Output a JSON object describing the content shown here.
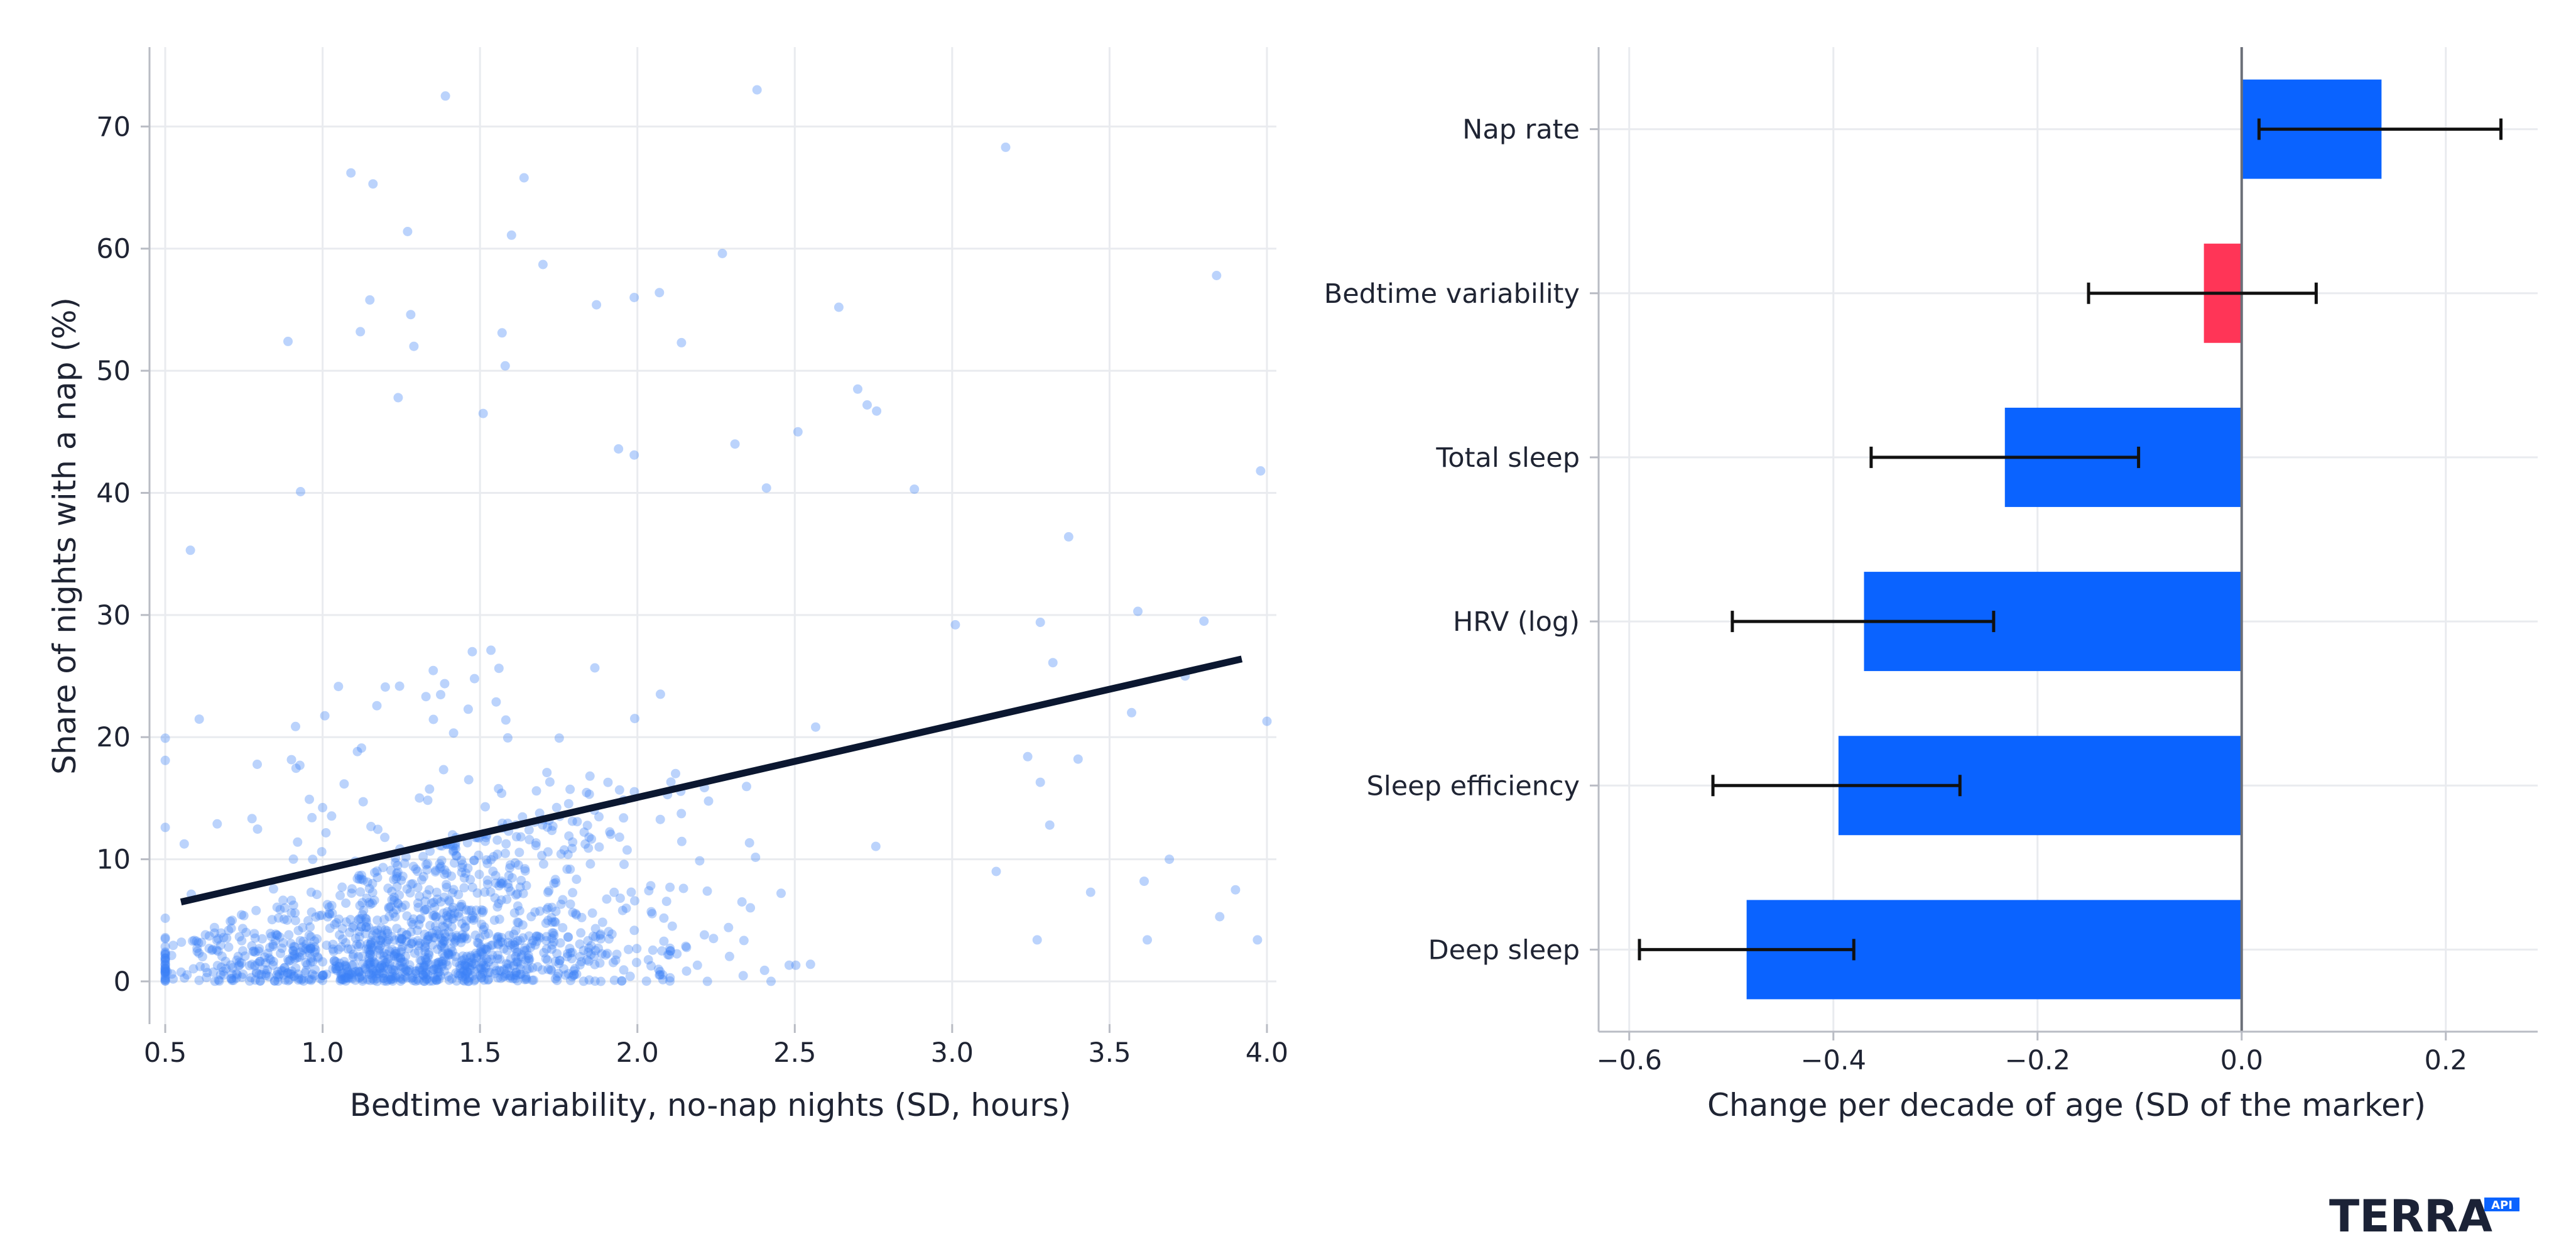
{
  "logo": {
    "text": "TERRA",
    "badge": "API"
  },
  "colors": {
    "point": "#3b82f6",
    "fit": "#0b1730",
    "bar_positive": "#0a63ff",
    "bar_highlight": "#ff3557",
    "error": "#111111",
    "zero_line": "#6b6f78"
  },
  "chart_data": [
    {
      "type": "scatter",
      "xlabel": "Bedtime variability, no-nap nights (SD, hours)",
      "ylabel": "Share of nights with a nap (%)",
      "xlim": [
        0.45,
        4.03
      ],
      "ylim": [
        -3.5,
        76.5
      ],
      "xticks": [
        "0.5",
        "1.0",
        "1.5",
        "2.0",
        "2.5",
        "3.0",
        "3.5",
        "4.0"
      ],
      "yticks": [
        "0",
        "10",
        "20",
        "30",
        "40",
        "50",
        "60",
        "70"
      ],
      "grid": true,
      "fit_line": {
        "x": [
          0.55,
          3.92
        ],
        "y": [
          6.5,
          26.4
        ]
      },
      "notable_points": [
        {
          "x": 1.39,
          "y": 72.5
        },
        {
          "x": 2.38,
          "y": 73.0
        },
        {
          "x": 3.17,
          "y": 68.3
        },
        {
          "x": 1.09,
          "y": 66.2
        },
        {
          "x": 1.16,
          "y": 65.3
        },
        {
          "x": 1.64,
          "y": 65.8
        },
        {
          "x": 1.27,
          "y": 61.4
        },
        {
          "x": 1.6,
          "y": 61.1
        },
        {
          "x": 2.27,
          "y": 59.6
        },
        {
          "x": 1.7,
          "y": 58.7
        },
        {
          "x": 3.84,
          "y": 57.8
        },
        {
          "x": 1.99,
          "y": 56.0
        },
        {
          "x": 2.07,
          "y": 56.4
        },
        {
          "x": 1.87,
          "y": 55.4
        },
        {
          "x": 2.64,
          "y": 55.2
        },
        {
          "x": 1.15,
          "y": 55.8
        },
        {
          "x": 1.28,
          "y": 54.6
        },
        {
          "x": 1.12,
          "y": 53.2
        },
        {
          "x": 1.57,
          "y": 53.1
        },
        {
          "x": 0.89,
          "y": 52.4
        },
        {
          "x": 1.29,
          "y": 52.0
        },
        {
          "x": 2.14,
          "y": 52.3
        },
        {
          "x": 1.58,
          "y": 50.4
        },
        {
          "x": 1.24,
          "y": 47.8
        },
        {
          "x": 2.7,
          "y": 48.5
        },
        {
          "x": 2.73,
          "y": 47.2
        },
        {
          "x": 2.76,
          "y": 46.7
        },
        {
          "x": 1.51,
          "y": 46.5
        },
        {
          "x": 1.94,
          "y": 43.6
        },
        {
          "x": 2.31,
          "y": 44.0
        },
        {
          "x": 2.51,
          "y": 45.0
        },
        {
          "x": 1.99,
          "y": 43.1
        },
        {
          "x": 3.98,
          "y": 41.8
        },
        {
          "x": 2.41,
          "y": 40.4
        },
        {
          "x": 0.93,
          "y": 40.1
        },
        {
          "x": 2.88,
          "y": 40.3
        },
        {
          "x": 3.37,
          "y": 36.4
        },
        {
          "x": 0.58,
          "y": 35.3
        },
        {
          "x": 3.59,
          "y": 30.3
        },
        {
          "x": 3.01,
          "y": 29.2
        },
        {
          "x": 3.28,
          "y": 29.4
        },
        {
          "x": 3.8,
          "y": 29.5
        },
        {
          "x": 3.32,
          "y": 26.1
        },
        {
          "x": 3.74,
          "y": 25.0
        },
        {
          "x": 3.57,
          "y": 22.0
        },
        {
          "x": 4.0,
          "y": 21.3
        },
        {
          "x": 3.4,
          "y": 18.2
        },
        {
          "x": 3.24,
          "y": 18.4
        },
        {
          "x": 3.28,
          "y": 16.3
        },
        {
          "x": 3.31,
          "y": 12.8
        },
        {
          "x": 3.14,
          "y": 9.0
        },
        {
          "x": 3.69,
          "y": 10.0
        },
        {
          "x": 3.44,
          "y": 7.3
        },
        {
          "x": 3.61,
          "y": 8.2
        },
        {
          "x": 3.9,
          "y": 7.5
        },
        {
          "x": 3.85,
          "y": 5.3
        },
        {
          "x": 3.62,
          "y": 3.4
        },
        {
          "x": 3.97,
          "y": 3.4
        },
        {
          "x": 3.27,
          "y": 3.4
        },
        {
          "x": 2.55,
          "y": 1.4
        }
      ],
      "bulk_points": {
        "count": 1400,
        "x_range": [
          0.5,
          2.9
        ],
        "y_range": [
          0,
          45
        ],
        "dense_center": {
          "x": 1.2,
          "y": 5
        }
      }
    },
    {
      "type": "bar",
      "orientation": "horizontal",
      "xlabel": "Change per decade of age (SD of the marker)",
      "xlim": [
        -0.63,
        0.29
      ],
      "xticks": [
        {
          "value": -0.6,
          "label": "−0.6"
        },
        {
          "value": -0.4,
          "label": "−0.4"
        },
        {
          "value": -0.2,
          "label": "−0.2"
        },
        {
          "value": 0.0,
          "label": "0.0"
        },
        {
          "value": 0.2,
          "label": "0.2"
        }
      ],
      "grid": true,
      "categories": [
        "Nap rate",
        "Bedtime variability",
        "Total sleep",
        "HRV (log)",
        "Sleep efficiency",
        "Deep sleep"
      ],
      "values": [
        0.137,
        -0.037,
        -0.232,
        -0.37,
        -0.395,
        -0.485
      ],
      "ci_low": [
        0.017,
        -0.15,
        -0.363,
        -0.499,
        -0.518,
        -0.59
      ],
      "ci_high": [
        0.254,
        0.073,
        -0.101,
        -0.243,
        -0.276,
        -0.38
      ],
      "highlight": [
        false,
        true,
        false,
        false,
        false,
        false
      ]
    }
  ]
}
